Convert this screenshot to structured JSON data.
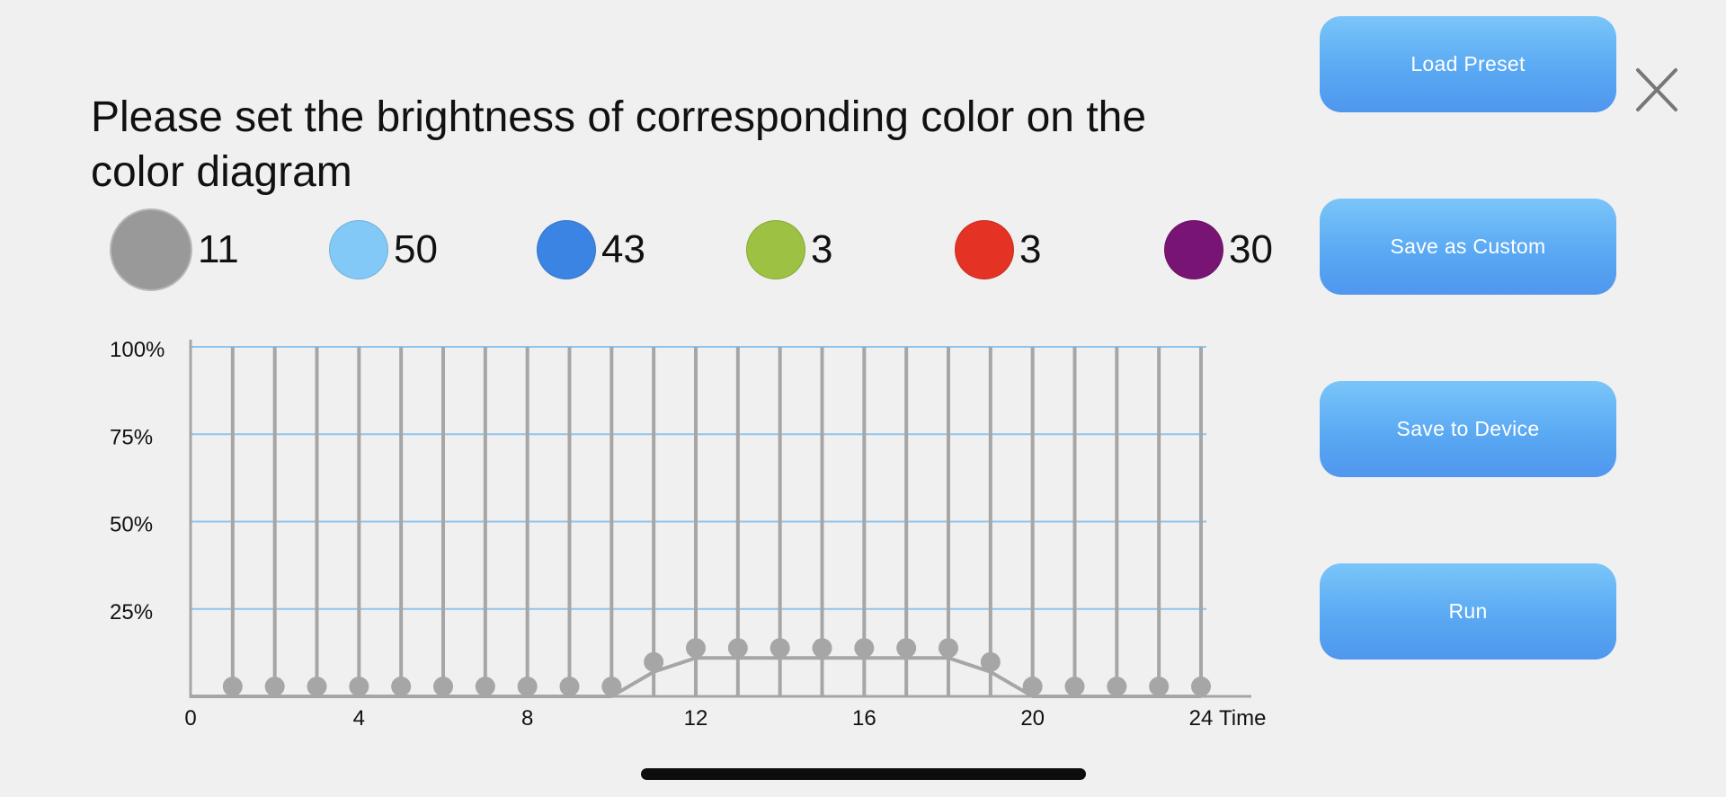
{
  "title": "Please set the brightness of corresponding color on the color diagram",
  "colors": [
    {
      "name": "gray-icon",
      "hex": "#999999",
      "value": "11",
      "selected": true
    },
    {
      "name": "lightblue-icon",
      "hex": "#82c9f7",
      "value": "50",
      "selected": false
    },
    {
      "name": "blue-icon",
      "hex": "#3b84e3",
      "value": "43",
      "selected": false
    },
    {
      "name": "green-icon",
      "hex": "#9cc143",
      "value": "3",
      "selected": false
    },
    {
      "name": "red-icon",
      "hex": "#e43325",
      "value": "3",
      "selected": false
    },
    {
      "name": "purple-icon",
      "hex": "#781574",
      "value": "30",
      "selected": false
    }
  ],
  "buttons": {
    "load_preset": "Load Preset",
    "save_as_custom": "Save as Custom",
    "save_to_device": "Save to Device",
    "run": "Run"
  },
  "theme": {
    "accent": "#5aa9f3",
    "grid": "#8dc4ee",
    "handle": "#a6a6a6"
  },
  "chart_data": {
    "type": "line",
    "xlabel": "Time",
    "ylabel": "",
    "ylim": [
      0,
      100
    ],
    "xlim": [
      0,
      24
    ],
    "y_ticks": [
      "25%",
      "50%",
      "75%",
      "100%"
    ],
    "x_ticks": [
      "0",
      "4",
      "8",
      "12",
      "16",
      "20",
      "24"
    ],
    "x": [
      1,
      2,
      3,
      4,
      5,
      6,
      7,
      8,
      9,
      10,
      11,
      12,
      13,
      14,
      15,
      16,
      17,
      18,
      19,
      20,
      21,
      22,
      23,
      24
    ],
    "values": [
      0,
      0,
      0,
      0,
      0,
      0,
      0,
      0,
      0,
      0,
      7,
      11,
      11,
      11,
      11,
      11,
      11,
      11,
      7,
      0,
      0,
      0,
      0,
      0
    ]
  }
}
